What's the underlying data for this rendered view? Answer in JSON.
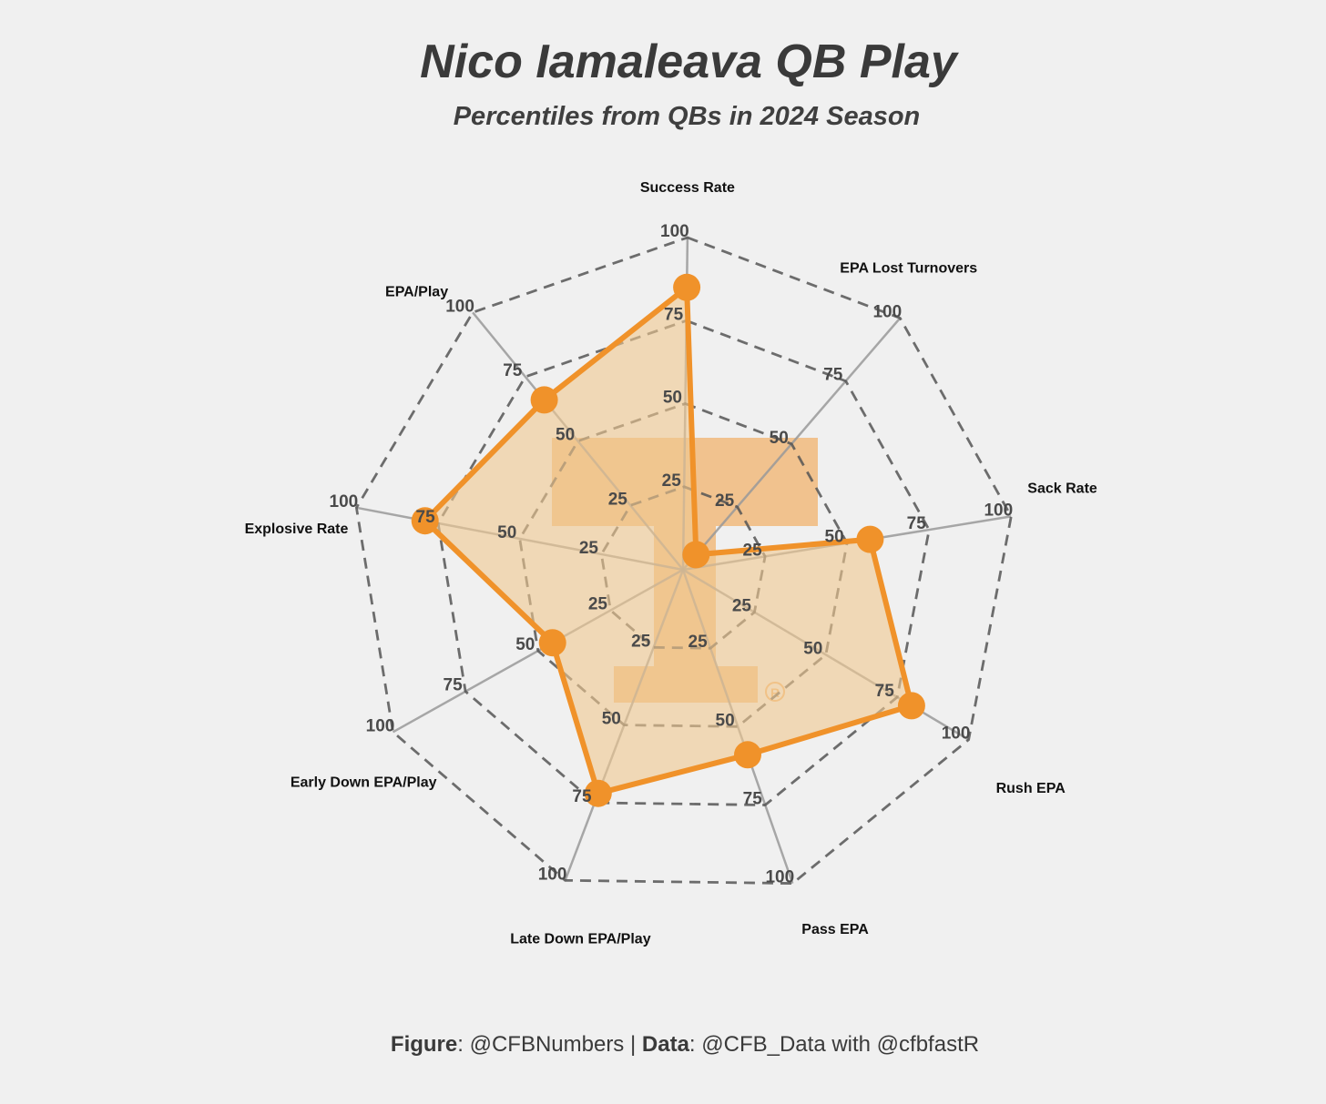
{
  "header": {
    "title": "Nico Iamaleava QB Play",
    "subtitle": "Percentiles from QBs in 2024 Season"
  },
  "caption": {
    "figure_label": "Figure",
    "figure_value": ": @CFBNumbers | ",
    "data_label": "Data",
    "data_value": ": @CFB_Data with @cfbfastR"
  },
  "chart_data": {
    "type": "radar",
    "title": "Nico Iamaleava QB Play",
    "subtitle": "Percentiles from QBs in 2024 Season",
    "axes": [
      "Success Rate",
      "EPA Lost Turnovers",
      "Sack Rate",
      "Rush EPA",
      "Pass EPA",
      "Late Down EPA/Play",
      "Early Down EPA/Play",
      "Explosive Rate",
      "EPA/Play"
    ],
    "values": [
      85,
      6,
      57,
      80,
      59,
      72,
      45,
      79,
      66
    ],
    "range": [
      0,
      100
    ],
    "ticks": [
      25,
      50,
      75,
      100
    ],
    "series_color": "#f0922a",
    "fill_color": "#f0c890",
    "grid_color": "#555555",
    "spoke_color": "#9a9a9a",
    "background_image": "tennessee-power-t-logo"
  },
  "colors": {
    "background": "#f0f0f0",
    "accent": "#f0922a",
    "logo": "#f2b36e"
  }
}
